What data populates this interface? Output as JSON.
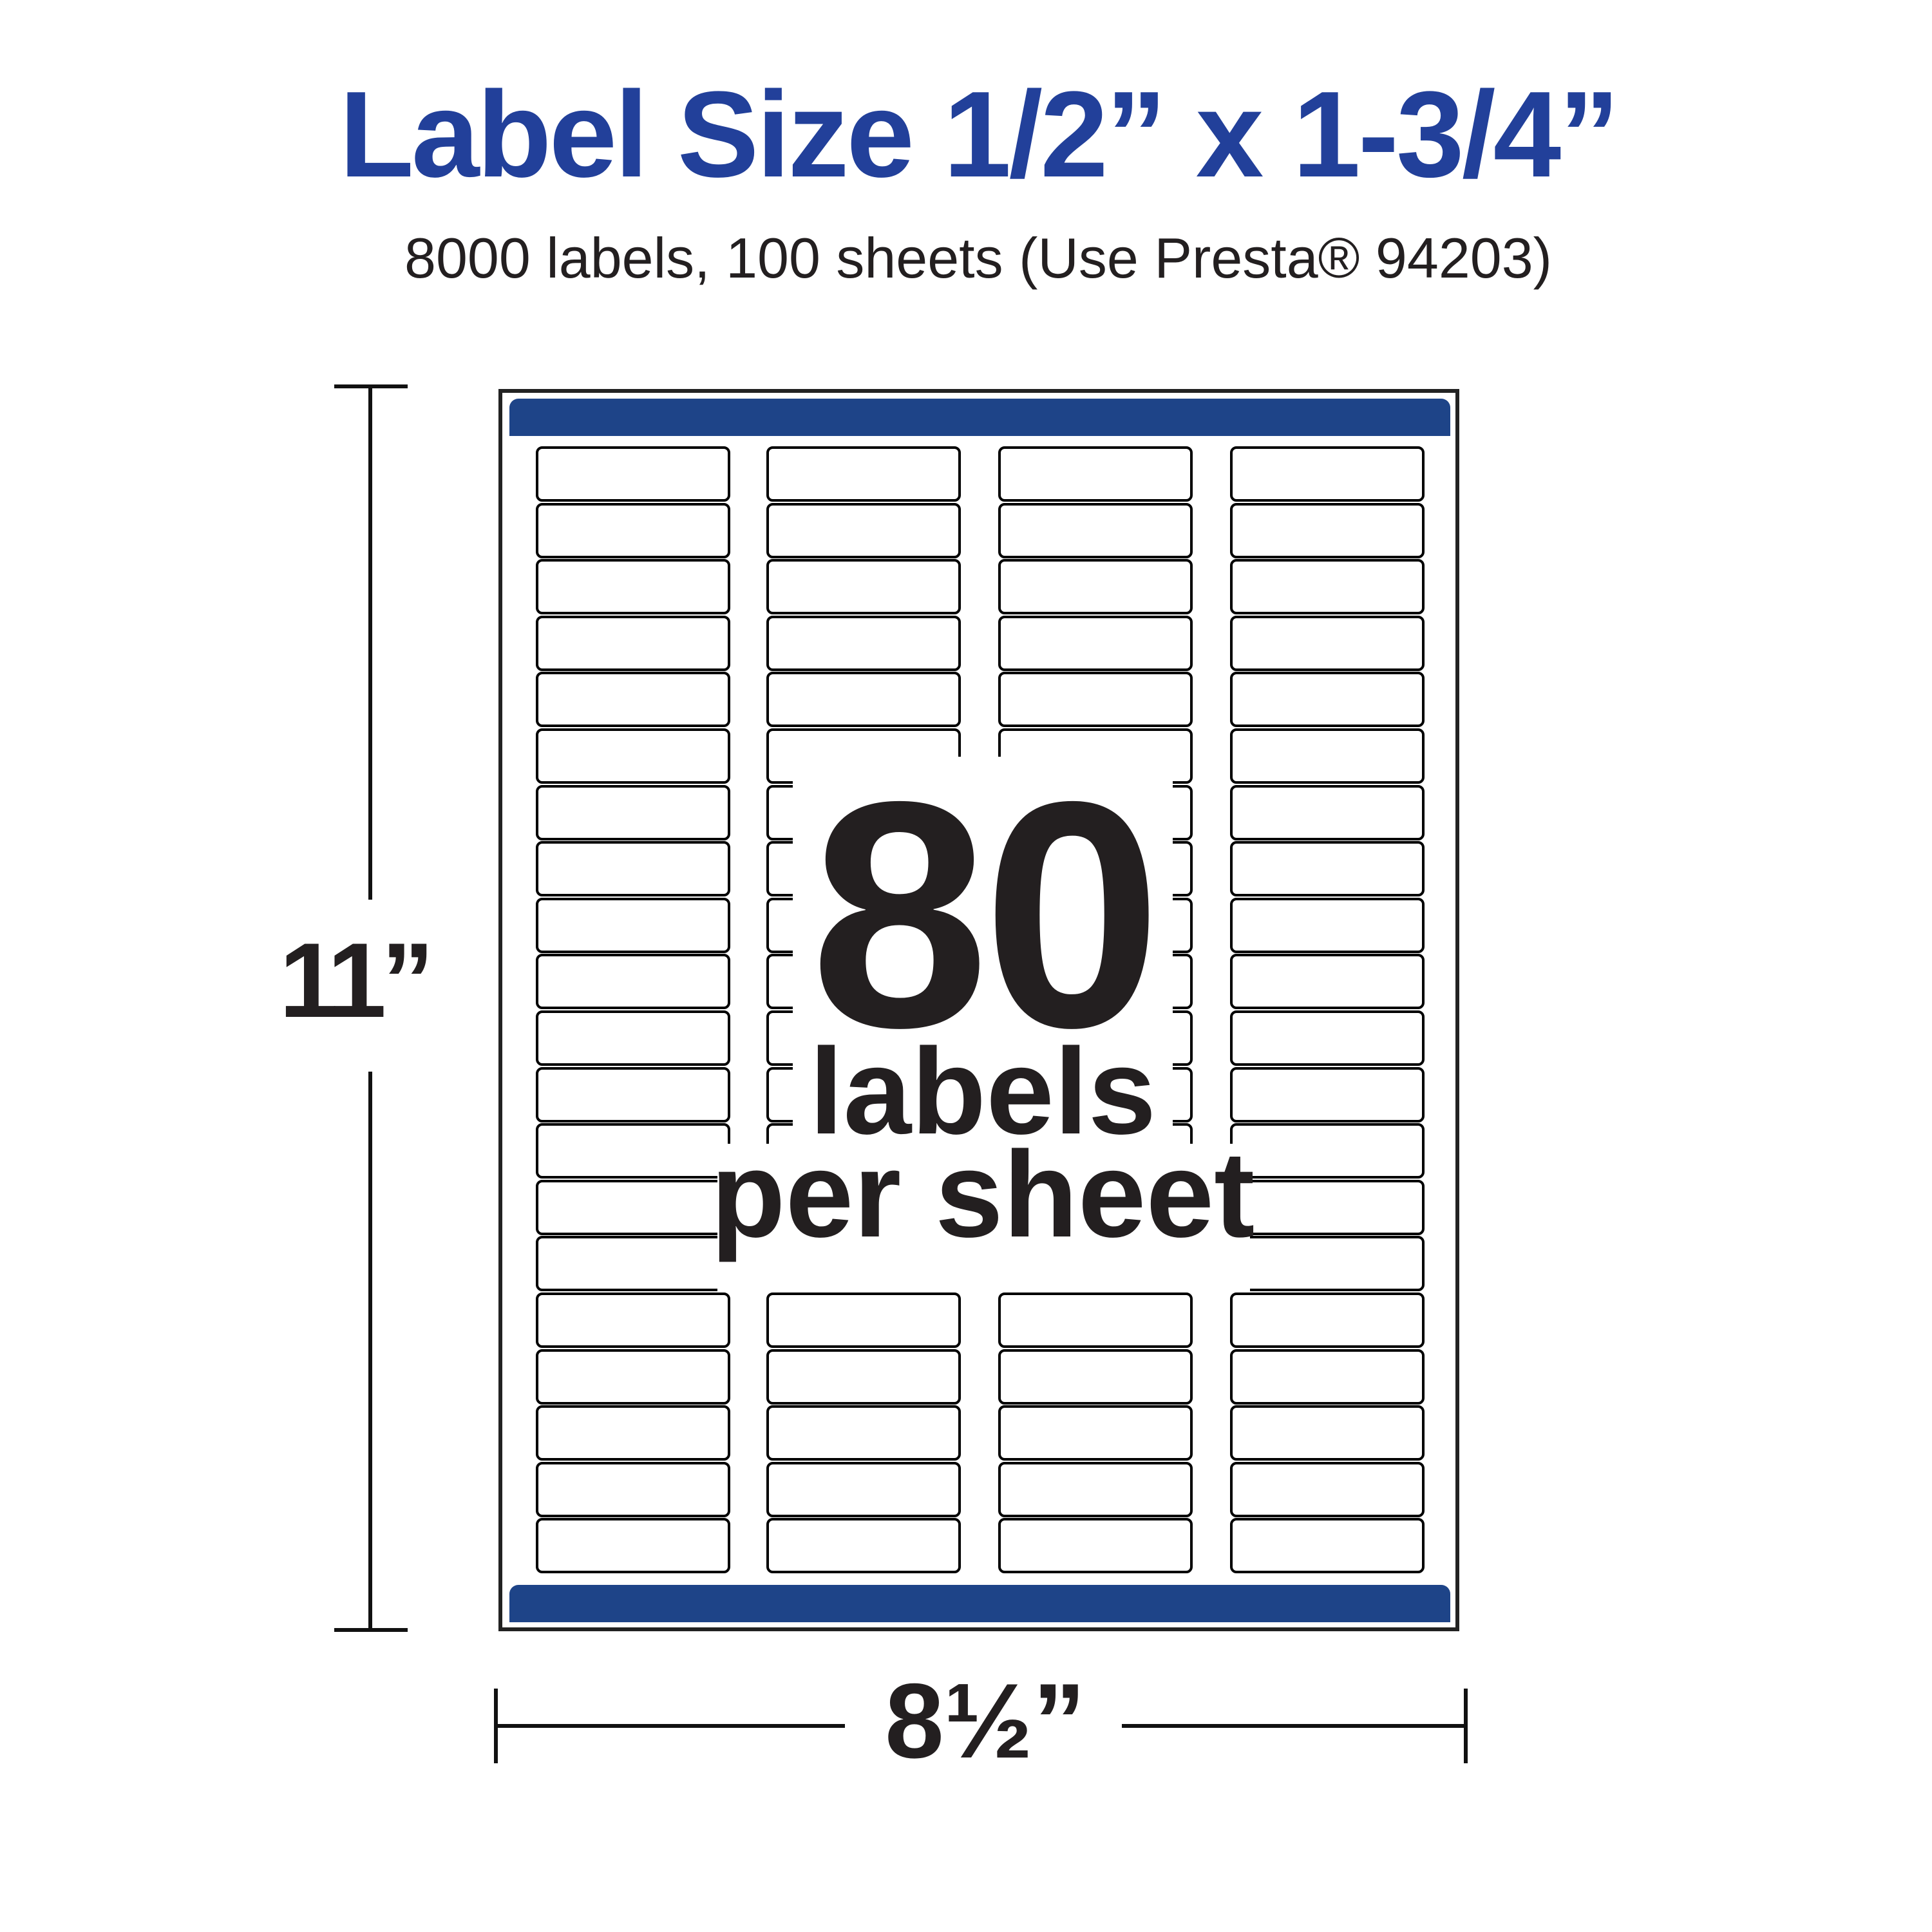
{
  "header": {
    "title": "Label Size 1/2” x 1-3/4”",
    "subtitle": "8000 labels, 100 sheets (Use Presta® 94203)"
  },
  "sheet": {
    "label_count": "80",
    "labels_text": "labels",
    "per_sheet_text": "per sheet",
    "columns": 4,
    "rows": 20,
    "bar_color": "#1e4488"
  },
  "dimensions": {
    "height": "11”",
    "width": "8½”"
  },
  "colors": {
    "title": "#22409a",
    "text": "#231f20"
  }
}
